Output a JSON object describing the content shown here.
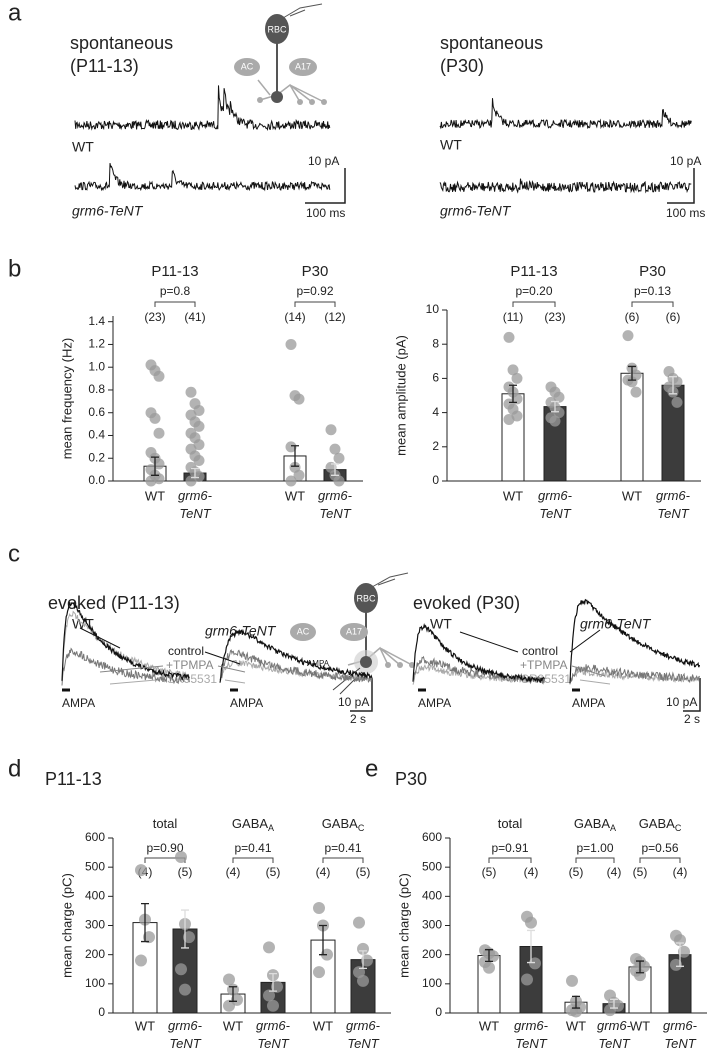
{
  "panel_letters": [
    "a",
    "b",
    "c",
    "d",
    "e"
  ],
  "panel_a": {
    "left": {
      "title": "spontaneous",
      "age": "(P11-13)",
      "wt": "WT",
      "mutant": "grm6-TeNT",
      "scale_y": "10 pA",
      "scale_x": "100 ms"
    },
    "right": {
      "title": "spontaneous",
      "age": "(P30)",
      "wt": "WT",
      "mutant": "grm6-TeNT",
      "scale_y": "10 pA",
      "scale_x": "100 ms"
    },
    "schematic": [
      "RBC",
      "AC",
      "A17"
    ]
  },
  "panel_c": {
    "left": {
      "title": "evoked (P11-13)",
      "wt": "WT",
      "mutant": "grm6-TeNT",
      "conditions": [
        "control",
        "+TPMPA",
        "+SR95531"
      ],
      "stimulus": [
        "AMPA",
        "AMPA"
      ],
      "scale_y": "10 pA",
      "scale_x": "2 s"
    },
    "right": {
      "title": "evoked (P30)",
      "wt": "WT",
      "mutant": "grm6-TeNT",
      "conditions": [
        "control",
        "+TPMPA",
        "+SR95531"
      ],
      "stimulus": [
        "AMPA",
        "AMPA"
      ],
      "scale_y": "10 pA",
      "scale_x": "2 s"
    },
    "schematic": [
      "RBC",
      "AC",
      "A17",
      "AMPA"
    ]
  },
  "chart_data": [
    {
      "type": "bar",
      "ylabel": "mean frequency (Hz)",
      "ylim": [
        0,
        1.45
      ],
      "yticks": [
        {
          "value": 0,
          "label": "0.0"
        },
        0.2,
        0.4,
        0.6,
        0.8,
        {
          "value": 1,
          "label": "1.0"
        },
        1.2,
        1.4
      ],
      "groups": [
        {
          "name": "P11-13",
          "p_label": "p=0.8",
          "n_labels": [
            "(23)",
            "(41)"
          ]
        },
        {
          "name": "P30",
          "p_label": "p=0.92",
          "n_labels": [
            "(14)",
            "(12)"
          ]
        }
      ],
      "categories": [
        "WT",
        "grm6-TeNT",
        "WT",
        "grm6-TeNT"
      ],
      "values": [
        0.13,
        0.07,
        0.22,
        0.1
      ],
      "errors": [
        0.08,
        0.04,
        0.09,
        0.05
      ],
      "bar_colors": [
        "#ffffff",
        "#3c3c3c",
        "#ffffff",
        "#3c3c3c"
      ],
      "point_color": "#9a9a9a",
      "points": [
        [
          1.02,
          0.97,
          0.92,
          0.6,
          0.55,
          0.42,
          0.25,
          0.2,
          0.15,
          0.1,
          0.05,
          0.02,
          0
        ],
        [
          0.78,
          0.68,
          0.62,
          0.58,
          0.52,
          0.48,
          0.42,
          0.38,
          0.32,
          0.28,
          0.22,
          0.18,
          0.12,
          0.08,
          0.04,
          0
        ],
        [
          1.2,
          0.75,
          0.72,
          0.3,
          0.12,
          0.05,
          0
        ],
        [
          0.45,
          0.28,
          0.2,
          0.12,
          0.05,
          0
        ]
      ]
    },
    {
      "type": "bar",
      "ylabel": "mean amplitude (pA)",
      "ylim": [
        0,
        10
      ],
      "yticks": [
        0,
        2,
        4,
        6,
        8,
        10
      ],
      "groups": [
        {
          "name": "P11-13",
          "p_label": "p=0.20",
          "n_labels": [
            "(11)",
            "(23)"
          ]
        },
        {
          "name": "P30",
          "p_label": "p=0.13",
          "n_labels": [
            "(6)",
            "(6)"
          ]
        }
      ],
      "categories": [
        "WT",
        "grm6-TeNT",
        "WT",
        "grm6-TeNT"
      ],
      "values": [
        5.1,
        4.35,
        6.3,
        5.6
      ],
      "errors": [
        0.5,
        0.3,
        0.4,
        0.5
      ],
      "bar_colors": [
        "#ffffff",
        "#3c3c3c",
        "#ffffff",
        "#3c3c3c"
      ],
      "point_color": "#9a9a9a",
      "points": [
        [
          8.4,
          6.5,
          6,
          5.5,
          5.2,
          4.8,
          4.5,
          4.2,
          3.8,
          3.6
        ],
        [
          5.5,
          5.2,
          4.9,
          4.6,
          4.3,
          4,
          3.7,
          3.5
        ],
        [
          8.5,
          6.6,
          6.2,
          5.9,
          5.8,
          5.2
        ],
        [
          6.4,
          6,
          5.8,
          5.5,
          5.2,
          4.6
        ]
      ]
    },
    {
      "type": "bar",
      "title": "P11-13",
      "ylabel": "mean charge (pC)",
      "ylim": [
        0,
        600
      ],
      "yticks": [
        0,
        100,
        200,
        300,
        400,
        500,
        600
      ],
      "groups": [
        {
          "name": "total",
          "p_label": "p=0.90",
          "n_labels": [
            "(4)",
            "(5)"
          ]
        },
        {
          "name": "GABA",
          "subscript": "A",
          "p_label": "p=0.41",
          "n_labels": [
            "(4)",
            "(5)"
          ]
        },
        {
          "name": "GABA",
          "subscript": "C",
          "p_label": "p=0.41",
          "n_labels": [
            "(4)",
            "(5)"
          ]
        }
      ],
      "categories": [
        "WT",
        "grm6-TeNT",
        "WT",
        "grm6-TeNT",
        "WT",
        "grm6-TeNT"
      ],
      "values": [
        310,
        288,
        65,
        105,
        250,
        183
      ],
      "errors": [
        65,
        65,
        25,
        30,
        50,
        30
      ],
      "bar_colors": [
        "#ffffff",
        "#3c3c3c",
        "#ffffff",
        "#3c3c3c",
        "#ffffff",
        "#3c3c3c"
      ],
      "point_color": "#9a9a9a",
      "points": [
        [
          490,
          320,
          260,
          180
        ],
        [
          535,
          305,
          260,
          150,
          80
        ],
        [
          115,
          80,
          45,
          25
        ],
        [
          225,
          130,
          90,
          60,
          25
        ],
        [
          360,
          300,
          200,
          140
        ],
        [
          310,
          220,
          180,
          140,
          110
        ]
      ]
    },
    {
      "type": "bar",
      "title": "P30",
      "ylabel": "mean charge (pC)",
      "ylim": [
        0,
        600
      ],
      "yticks": [
        0,
        100,
        200,
        300,
        400,
        500,
        600
      ],
      "groups": [
        {
          "name": "total",
          "p_label": "p=0.91",
          "n_labels": [
            "(5)",
            "(4)"
          ]
        },
        {
          "name": "GABA",
          "subscript": "A",
          "p_label": "p=1.00",
          "n_labels": [
            "(5)",
            "(4)"
          ]
        },
        {
          "name": "GABA",
          "subscript": "C",
          "p_label": "p=0.56",
          "n_labels": [
            "(5)",
            "(4)"
          ]
        }
      ],
      "categories": [
        "WT",
        "grm6-TeNT",
        "WT",
        "grm6-TeNT",
        "WT",
        "grm6-TeNT"
      ],
      "values": [
        197,
        228,
        37,
        32,
        158,
        200
      ],
      "errors": [
        20,
        55,
        20,
        15,
        20,
        40
      ],
      "bar_colors": [
        "#ffffff",
        "#3c3c3c",
        "#ffffff",
        "#3c3c3c",
        "#ffffff",
        "#3c3c3c"
      ],
      "point_color": "#9a9a9a",
      "points": [
        [
          215,
          205,
          195,
          175,
          155
        ],
        [
          330,
          310,
          170,
          115
        ],
        [
          110,
          40,
          20,
          10,
          5
        ],
        [
          60,
          35,
          25,
          10
        ],
        [
          185,
          175,
          160,
          145,
          130
        ],
        [
          265,
          250,
          210,
          165
        ]
      ]
    }
  ]
}
